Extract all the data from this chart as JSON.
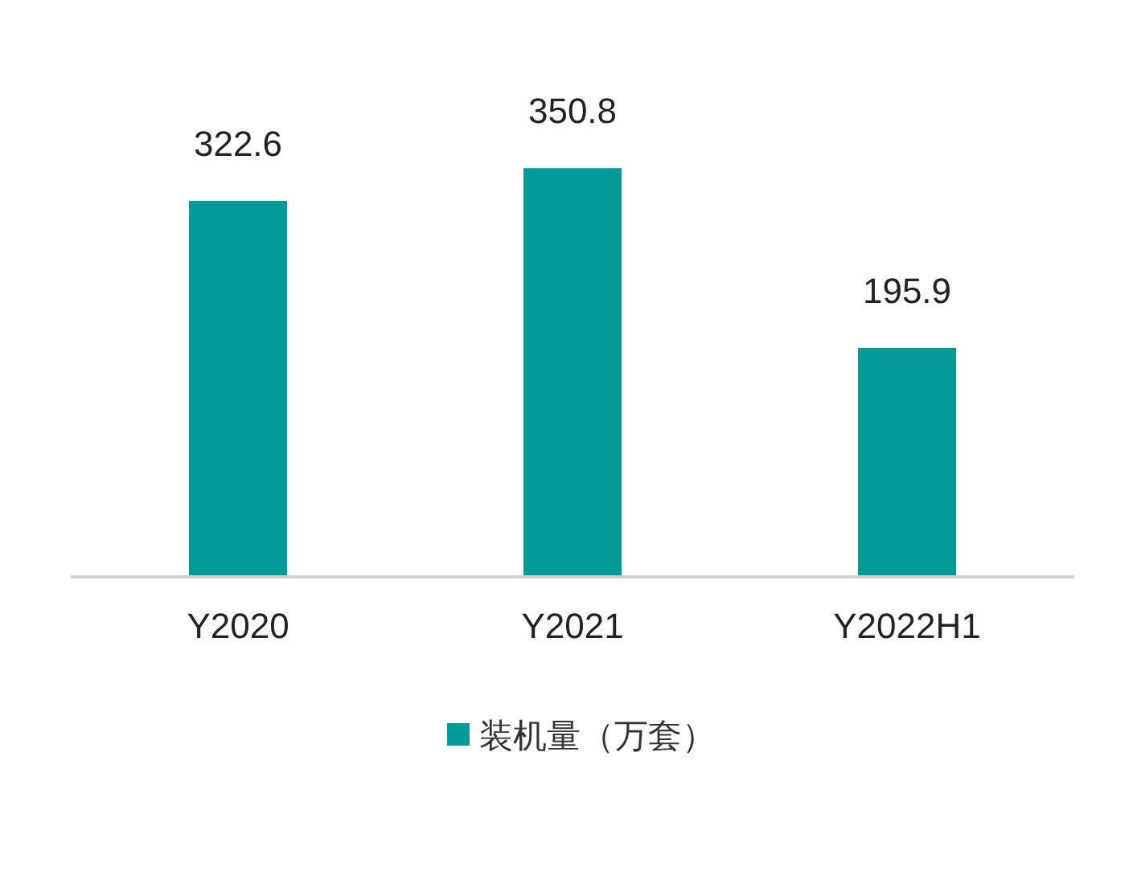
{
  "chart_data": {
    "type": "bar",
    "categories": [
      "Y2020",
      "Y2021",
      "Y2022H1"
    ],
    "series": [
      {
        "name": "装机量（万套）",
        "color": "#009b98",
        "values": [
          322.6,
          350.8,
          195.9
        ]
      }
    ],
    "data_labels": true,
    "legend": "bottom"
  }
}
